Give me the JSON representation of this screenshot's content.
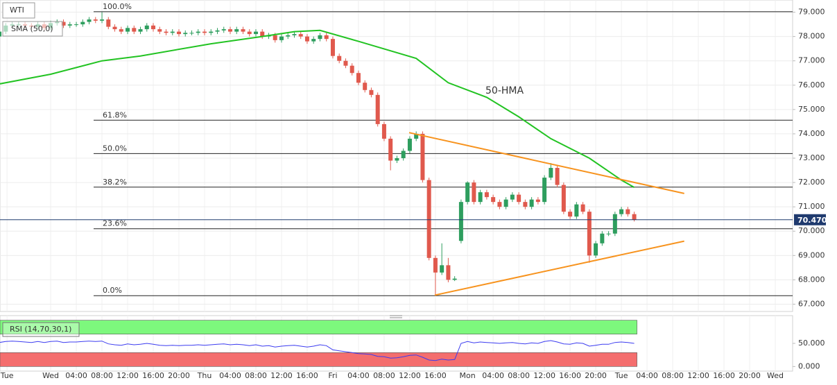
{
  "chart_data": [
    {
      "type": "candlestick",
      "title": "WTI",
      "up_color": "#2e9e5e",
      "down_color": "#e0594d",
      "xlim": [
        -7.9,
        115.7
      ],
      "ylim": [
        66.7,
        79.5
      ],
      "yticks": [
        {
          "value": 79,
          "label": "79.000"
        },
        {
          "value": 78,
          "label": "78.000"
        },
        {
          "value": 77,
          "label": "77.000"
        },
        {
          "value": 76,
          "label": "76.000"
        },
        {
          "value": 75,
          "label": "75.000"
        },
        {
          "value": 74,
          "label": "74.000"
        },
        {
          "value": 73,
          "label": "73.000"
        },
        {
          "value": 72,
          "label": "72.000"
        },
        {
          "value": 71,
          "label": "71.000"
        },
        {
          "value": 70,
          "label": "70.000"
        },
        {
          "value": 69,
          "label": "69.000"
        },
        {
          "value": 68,
          "label": "68.000"
        },
        {
          "value": 67,
          "label": "67.000"
        }
      ],
      "grid": true,
      "x": [
        -8,
        -7,
        -6,
        -5,
        -4,
        -3,
        -2,
        -1,
        0,
        1,
        2,
        3,
        4,
        5,
        6,
        7,
        8,
        9,
        10,
        11,
        12,
        13,
        14,
        15,
        16,
        17,
        18,
        19,
        20,
        21,
        22,
        23,
        24,
        25,
        26,
        27,
        28,
        29,
        30,
        31,
        32,
        33,
        34,
        35,
        36,
        37,
        38,
        39,
        40,
        41,
        42,
        43,
        44,
        45,
        46,
        47,
        48,
        49,
        50,
        51,
        52,
        53,
        54,
        55,
        56,
        57,
        58,
        59,
        60,
        61,
        62,
        63,
        64,
        65,
        66,
        67,
        68,
        69,
        70,
        71,
        72,
        73,
        74,
        75,
        76,
        77,
        78,
        79,
        80,
        81,
        82,
        83,
        84,
        85,
        86,
        87,
        88,
        89,
        90,
        91
      ],
      "open": [
        78.0,
        78.2,
        78.45,
        78.5,
        78.5,
        78.45,
        78.4,
        78.5,
        78.35,
        78.55,
        78.6,
        78.45,
        78.5,
        78.5,
        78.6,
        78.7,
        78.65,
        78.7,
        78.4,
        78.3,
        78.2,
        78.35,
        78.2,
        78.3,
        78.45,
        78.3,
        78.2,
        78.15,
        78.2,
        78.1,
        78.15,
        78.15,
        78.2,
        78.15,
        78.2,
        78.25,
        78.3,
        78.2,
        78.3,
        78.2,
        78.1,
        78.2,
        78.0,
        78.05,
        77.85,
        78.0,
        78.05,
        78.1,
        78.0,
        77.8,
        77.9,
        78.05,
        77.9,
        77.2,
        77.0,
        76.8,
        76.5,
        76.1,
        75.8,
        75.6,
        74.4,
        73.8,
        72.9,
        73.0,
        73.3,
        73.8,
        74.0,
        72.1,
        68.9,
        68.3,
        68.6,
        68.0,
        69.6,
        71.2,
        72.0,
        71.2,
        71.6,
        71.4,
        71.2,
        71.0,
        71.3,
        71.5,
        71.2,
        71.0,
        71.3,
        71.2,
        72.2,
        72.6,
        71.9,
        70.8,
        70.6,
        71.1,
        70.8,
        69.0,
        69.5,
        69.9,
        69.9,
        70.7,
        70.9,
        70.7
      ],
      "high": [
        78.3,
        78.55,
        78.6,
        78.6,
        78.6,
        78.55,
        78.6,
        78.6,
        78.65,
        78.7,
        78.7,
        78.6,
        78.6,
        78.7,
        78.8,
        78.8,
        79.0,
        78.8,
        78.5,
        78.4,
        78.45,
        78.45,
        78.4,
        78.55,
        78.55,
        78.4,
        78.3,
        78.3,
        78.3,
        78.25,
        78.25,
        78.3,
        78.3,
        78.3,
        78.35,
        78.4,
        78.4,
        78.4,
        78.4,
        78.3,
        78.3,
        78.3,
        78.15,
        78.15,
        78.1,
        78.15,
        78.2,
        78.2,
        78.1,
        78.0,
        78.15,
        78.15,
        78.0,
        77.3,
        77.1,
        76.9,
        76.6,
        76.2,
        75.9,
        75.7,
        74.5,
        73.9,
        73.1,
        73.4,
        73.9,
        74.1,
        74.1,
        72.2,
        69.0,
        69.5,
        68.9,
        68.15,
        71.3,
        72.05,
        72.1,
        71.7,
        71.7,
        71.5,
        71.3,
        71.4,
        71.6,
        71.6,
        71.3,
        71.4,
        71.4,
        72.3,
        72.8,
        72.7,
        72.0,
        70.9,
        71.2,
        71.2,
        70.9,
        69.6,
        70.0,
        70.0,
        70.8,
        71.0,
        71.0,
        70.8
      ],
      "low": [
        77.9,
        78.1,
        78.35,
        78.4,
        78.35,
        78.3,
        78.3,
        78.25,
        78.25,
        78.45,
        78.35,
        78.35,
        78.4,
        78.4,
        78.5,
        78.55,
        78.55,
        78.3,
        78.2,
        78.1,
        78.1,
        78.1,
        78.1,
        78.2,
        78.2,
        78.1,
        78.05,
        78.05,
        78.0,
        78.0,
        78.05,
        78.05,
        78.05,
        78.05,
        78.1,
        78.15,
        78.1,
        78.1,
        78.1,
        78.0,
        78.0,
        77.9,
        77.9,
        77.75,
        77.75,
        77.9,
        77.95,
        77.9,
        77.7,
        77.7,
        77.8,
        77.8,
        77.1,
        76.9,
        76.7,
        76.4,
        76.0,
        75.7,
        75.5,
        74.3,
        73.7,
        72.5,
        72.8,
        72.9,
        73.2,
        73.7,
        72.0,
        68.8,
        67.35,
        68.2,
        67.9,
        67.95,
        69.5,
        71.1,
        71.1,
        71.1,
        71.3,
        71.1,
        70.9,
        70.9,
        71.2,
        71.1,
        70.9,
        70.9,
        71.1,
        71.1,
        72.1,
        71.8,
        70.7,
        70.5,
        70.5,
        70.7,
        68.7,
        68.9,
        69.4,
        69.8,
        69.8,
        70.6,
        70.6,
        70.4
      ],
      "close": [
        78.2,
        78.45,
        78.5,
        78.5,
        78.45,
        78.4,
        78.5,
        78.35,
        78.55,
        78.6,
        78.45,
        78.5,
        78.5,
        78.6,
        78.7,
        78.65,
        78.7,
        78.4,
        78.3,
        78.2,
        78.35,
        78.2,
        78.3,
        78.45,
        78.3,
        78.2,
        78.15,
        78.2,
        78.1,
        78.15,
        78.15,
        78.2,
        78.15,
        78.2,
        78.25,
        78.3,
        78.2,
        78.3,
        78.2,
        78.1,
        78.2,
        78.0,
        78.05,
        77.85,
        78.0,
        78.05,
        78.1,
        78.0,
        77.8,
        77.9,
        78.05,
        77.9,
        77.2,
        77.0,
        76.8,
        76.5,
        76.1,
        75.8,
        75.6,
        74.4,
        73.8,
        72.9,
        73.0,
        73.3,
        73.8,
        74.0,
        72.1,
        68.9,
        68.3,
        68.6,
        68.0,
        68.05,
        71.2,
        72.0,
        71.2,
        71.6,
        71.4,
        71.2,
        71.0,
        71.3,
        71.5,
        71.2,
        71.0,
        71.3,
        71.2,
        72.2,
        72.6,
        71.9,
        70.8,
        70.6,
        71.1,
        70.8,
        69.0,
        69.5,
        69.9,
        69.9,
        70.7,
        70.9,
        70.7,
        70.47
      ],
      "series": [
        {
          "name": "SMA (50,0)",
          "color": "#22c322",
          "x": [
            -8,
            0,
            8,
            14,
            25,
            33,
            38,
            42,
            48,
            57,
            62,
            68,
            73,
            78,
            84,
            89,
            91
          ],
          "values": [
            76.05,
            76.45,
            77.0,
            77.2,
            77.7,
            78.0,
            78.2,
            78.25,
            77.8,
            77.1,
            76.1,
            75.5,
            74.7,
            73.8,
            73.0,
            72.1,
            71.8
          ]
        }
      ],
      "annotation": "50-HMA",
      "fib_levels": [
        {
          "value": 79.02,
          "label": "100.0%"
        },
        {
          "value": 74.56,
          "label": "61.8%"
        },
        {
          "value": 73.19,
          "label": "50.0%"
        },
        {
          "value": 71.81,
          "label": "38.2%"
        },
        {
          "value": 70.1,
          "label": "23.6%"
        },
        {
          "value": 67.35,
          "label": "0.0%"
        }
      ],
      "trendlines": [
        {
          "color": "#f7931e",
          "x": [
            55.9,
            98.8
          ],
          "values": [
            74.05,
            71.55
          ]
        },
        {
          "color": "#f7931e",
          "x": [
            59.9,
            98.8
          ],
          "values": [
            67.37,
            69.59
          ]
        }
      ],
      "last_price": {
        "value": 70.47,
        "label": "70.470"
      },
      "last_price_color": "#1f3a6e"
    },
    {
      "type": "line",
      "title": "RSI (14,70,30,1)",
      "xlim": [
        -7.9,
        115.7
      ],
      "ylim": [
        -10,
        110
      ],
      "yticks": [
        {
          "value": 50,
          "label": "50.000"
        },
        {
          "value": 0,
          "label": "0.000"
        }
      ],
      "xticks": [
        {
          "value": -6.8,
          "label": "Tue"
        },
        {
          "value": 0,
          "label": "Wed"
        },
        {
          "value": 4,
          "label": "04:00"
        },
        {
          "value": 8,
          "label": "08:00"
        },
        {
          "value": 12,
          "label": "12:00"
        },
        {
          "value": 16,
          "label": "16:00"
        },
        {
          "value": 20,
          "label": "20:00"
        },
        {
          "value": 24,
          "label": "Thu"
        },
        {
          "value": 28,
          "label": "04:00"
        },
        {
          "value": 32,
          "label": "08:00"
        },
        {
          "value": 36,
          "label": "12:00"
        },
        {
          "value": 40,
          "label": "16:00"
        },
        {
          "value": 44,
          "label": "Fri"
        },
        {
          "value": 48,
          "label": "04:00"
        },
        {
          "value": 52,
          "label": "08:00"
        },
        {
          "value": 56,
          "label": "12:00"
        },
        {
          "value": 60,
          "label": "16:00"
        },
        {
          "value": 65,
          "label": "Mon"
        },
        {
          "value": 69,
          "label": "04:00"
        },
        {
          "value": 73,
          "label": "08:00"
        },
        {
          "value": 77,
          "label": "12:00"
        },
        {
          "value": 81,
          "label": "16:00"
        },
        {
          "value": 85,
          "label": "20:00"
        },
        {
          "value": 89,
          "label": "Tue"
        },
        {
          "value": 93,
          "label": "04:00"
        },
        {
          "value": 97,
          "label": "08:00"
        },
        {
          "value": 101,
          "label": "12:00"
        },
        {
          "value": 105,
          "label": "16:00"
        },
        {
          "value": 109,
          "label": "20:00"
        },
        {
          "value": 113,
          "label": "Wed"
        }
      ],
      "overbought_zone": [
        70,
        100
      ],
      "oversold_zone": [
        0,
        30
      ],
      "overbought_color": "#7df87d",
      "oversold_color": "#f46e6e",
      "series": [
        {
          "name": "RSI",
          "color": "#3b3bf0",
          "x": [
            -8,
            -7,
            -6,
            -5,
            -4,
            -3,
            -2,
            -1,
            0,
            1,
            2,
            3,
            4,
            5,
            6,
            7,
            8,
            9,
            10,
            11,
            12,
            13,
            14,
            15,
            16,
            17,
            18,
            19,
            20,
            21,
            22,
            23,
            24,
            25,
            26,
            27,
            28,
            29,
            30,
            31,
            32,
            33,
            34,
            35,
            36,
            37,
            38,
            39,
            40,
            41,
            42,
            43,
            44,
            45,
            46,
            47,
            48,
            49,
            50,
            51,
            52,
            53,
            54,
            55,
            56,
            57,
            58,
            59,
            60,
            61,
            62,
            63,
            64,
            65,
            66,
            67,
            68,
            69,
            70,
            71,
            72,
            73,
            74,
            75,
            76,
            77,
            78,
            79,
            80,
            81,
            82,
            83,
            84,
            85,
            86,
            87,
            88,
            89,
            90,
            91
          ],
          "values": [
            52,
            54,
            55,
            54,
            53,
            52,
            54,
            52,
            54,
            55,
            52,
            53,
            53,
            54,
            55,
            54,
            55,
            49,
            47,
            46,
            49,
            47,
            48,
            50,
            48,
            46,
            45,
            46,
            45,
            46,
            46,
            47,
            46,
            47,
            48,
            49,
            47,
            48,
            47,
            45,
            47,
            44,
            45,
            42,
            44,
            45,
            46,
            44,
            42,
            44,
            47,
            45,
            36,
            34,
            32,
            30,
            28,
            27,
            26,
            22,
            21,
            18,
            19,
            21,
            24,
            25,
            20,
            14,
            13,
            16,
            14,
            15,
            50,
            54,
            51,
            53,
            52,
            51,
            50,
            51,
            52,
            50,
            49,
            51,
            50,
            54,
            56,
            53,
            49,
            48,
            51,
            50,
            44,
            46,
            48,
            48,
            52,
            53,
            52,
            50
          ]
        }
      ]
    }
  ]
}
